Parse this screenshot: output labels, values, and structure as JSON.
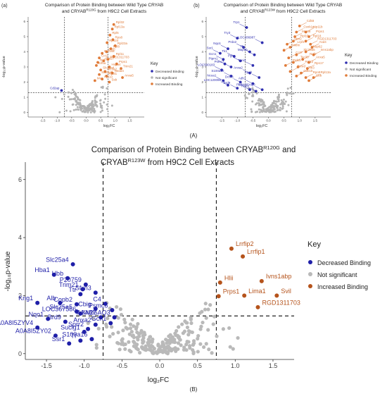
{
  "chart_data": [
    {
      "type": "scatter",
      "panel_label": "(a)",
      "title_line1": "Comparison of Protein Binding between Wild Type CRYAB",
      "title_line2": "and CRYAB",
      "title_sup": "R120G",
      "title_tail": " from H9C2 Cell Extracts",
      "xlabel": "log₂FC",
      "ylabel": "-log₁₀p-value",
      "xlim": [
        -2,
        2
      ],
      "ylim": [
        -0.3,
        6.3
      ],
      "xticks": [
        -1.5,
        -1.0,
        -0.5,
        0.0,
        0.5,
        1.0,
        1.5
      ],
      "yticks": [
        0,
        1,
        2,
        3,
        4,
        5,
        6
      ],
      "vlines": [
        -0.75,
        0.75
      ],
      "hline": 1.3,
      "legend": {
        "title": "Key",
        "position": "right",
        "items": [
          "Decreased Binding",
          "Not significant",
          "Increased Binding"
        ]
      },
      "series": [
        {
          "name": "Decreased Binding",
          "color": "#2f2fb0",
          "points": [
            [
              -0.85,
              1.45,
              "Cd2ap"
            ]
          ]
        },
        {
          "name": "Increased Binding",
          "color": "#e07b39",
          "points": [
            [
              0.95,
              5.8,
              "Rpl32"
            ],
            [
              0.9,
              5.5,
              "Rpl13a"
            ],
            [
              0.82,
              5.1,
              "Rpl6"
            ],
            [
              0.92,
              4.8,
              "Rps8"
            ],
            [
              0.72,
              4.6,
              "Rps24"
            ],
            [
              1.0,
              4.4,
              "Rpl23a"
            ],
            [
              0.85,
              4.2,
              "Rpl8"
            ],
            [
              0.7,
              4.0,
              "Dct5"
            ],
            [
              0.55,
              3.9,
              "Rpl18a"
            ],
            [
              0.95,
              3.7,
              "Rpl11"
            ],
            [
              0.45,
              3.6,
              "Cct2"
            ],
            [
              0.75,
              3.5,
              "RGD1311703"
            ],
            [
              0.6,
              3.4,
              "Rpl27"
            ],
            [
              0.4,
              3.3,
              "Nuf7"
            ],
            [
              1.05,
              3.2,
              "Prps1"
            ],
            [
              0.35,
              3.1,
              "Eif5a"
            ],
            [
              0.8,
              3.0,
              "Hspa4"
            ],
            [
              1.2,
              2.9,
              "Trim21"
            ],
            [
              0.5,
              2.8,
              "Slc25a4"
            ],
            [
              0.65,
              2.7,
              "Slc3a2"
            ],
            [
              0.9,
              2.6,
              "Nedd4"
            ],
            [
              0.45,
              2.5,
              "Slc25a5"
            ],
            [
              0.7,
              2.4,
              "Rpl31"
            ],
            [
              1.25,
              2.3,
              "Anxa5"
            ],
            [
              0.55,
              2.2,
              "Rpl10"
            ],
            [
              0.3,
              2.1,
              "Msn"
            ],
            [
              0.8,
              2.0,
              "Ssb"
            ]
          ]
        },
        {
          "name": "Not significant",
          "color": "#b4b4b4",
          "points": []
        }
      ]
    },
    {
      "type": "scatter",
      "panel_label": "(b)",
      "title_line1": "Comparison of Protein Binding between Wild Type CRYAB",
      "title_line2": "and CRYAB",
      "title_sup": "R123W",
      "title_tail": " from H9C2 Cell Extracts",
      "xlabel": "log₂FC",
      "ylabel": "-log₁₀p-value",
      "xlim": [
        -2,
        2
      ],
      "ylim": [
        -0.3,
        6.3
      ],
      "xticks": [
        -1.5,
        -1.0,
        -0.5,
        0.0,
        0.5,
        1.0,
        1.5
      ],
      "yticks": [
        0,
        1,
        2,
        3,
        4,
        5,
        6
      ],
      "vlines": [
        -0.75,
        0.75
      ],
      "hline": 1.3,
      "legend": {
        "title": "Key",
        "position": "right",
        "items": [
          "Decreased Binding",
          "Not significant",
          "Increased Binding"
        ]
      },
      "series": [
        {
          "name": "Decreased Binding",
          "color": "#2f2fb0",
          "points": [
            [
              -0.7,
              5.6,
              "Trp1"
            ],
            [
              -1.0,
              4.9,
              "Try3"
            ],
            [
              -0.2,
              4.6,
              "LOC286987"
            ],
            [
              -1.3,
              4.2,
              "Nqo1"
            ],
            [
              -0.8,
              4.3,
              "Prdx2"
            ],
            [
              -0.6,
              4.0,
              "Tf"
            ],
            [
              -1.55,
              3.9,
              "Ssr1"
            ],
            [
              -0.45,
              3.8,
              "Map1b"
            ],
            [
              -1.1,
              3.7,
              "Tk1"
            ],
            [
              -1.45,
              3.5,
              "Gcn1"
            ],
            [
              -0.9,
              3.4,
              "Pgk"
            ],
            [
              -1.4,
              3.2,
              "Ptpm1"
            ],
            [
              -0.5,
              3.1,
              "Tnni3"
            ],
            [
              -1.2,
              3.0,
              "Psmc7"
            ],
            [
              -1.5,
              2.8,
              "LOC500183"
            ],
            [
              -0.6,
              2.6,
              "Anxa2"
            ],
            [
              -1.2,
              2.4,
              "S100a10"
            ],
            [
              -0.3,
              2.3,
              "Apoh"
            ],
            [
              -1.45,
              2.1,
              "Ncoa1"
            ],
            [
              -0.9,
              2.0,
              "Dctn3"
            ],
            [
              -0.5,
              1.9,
              "Adh1"
            ],
            [
              -1.3,
              1.8,
              "LOC120098"
            ],
            [
              -1.0,
              1.6,
              "Brd9"
            ],
            [
              -0.6,
              1.5,
              "Plec"
            ],
            [
              -0.4,
              1.4,
              "Hoes"
            ],
            [
              -0.2,
              1.5,
              "A0A8I6AQ3"
            ]
          ]
        },
        {
          "name": "Increased Binding",
          "color": "#e07b39",
          "points": [
            [
              1.0,
              5.7,
              "Cdk8"
            ],
            [
              0.9,
              5.3,
              "Csnk1g"
            ],
            [
              1.2,
              5.3,
              "Atp11b"
            ],
            [
              0.85,
              5.0,
              "Mcm6"
            ],
            [
              1.3,
              5.0,
              "Prps1"
            ],
            [
              0.8,
              4.7,
              "Rpl15"
            ],
            [
              1.2,
              4.7,
              "Rpl18"
            ],
            [
              0.6,
              4.5,
              "Atrn2"
            ],
            [
              1.35,
              4.5,
              "RGD1311703"
            ],
            [
              0.7,
              4.3,
              "Lrpf1"
            ],
            [
              1.4,
              4.3,
              "Asd4"
            ],
            [
              0.5,
              4.1,
              "Tmem"
            ],
            [
              1.2,
              4.0,
              "Nup62"
            ],
            [
              0.9,
              3.8,
              "Slc25a5"
            ],
            [
              1.45,
              3.8,
              "Ivns1abp"
            ],
            [
              0.65,
              3.6,
              "Cct7"
            ],
            [
              1.1,
              3.5,
              "Nuf2"
            ],
            [
              0.8,
              3.3,
              "Tsc30"
            ],
            [
              1.3,
              3.3,
              "Anxa5"
            ],
            [
              0.55,
              3.1,
              "Prdx5"
            ],
            [
              0.95,
              3.0,
              "Rpl12"
            ],
            [
              1.25,
              2.9,
              "Rps17"
            ],
            [
              0.7,
              2.7,
              "Txnrd"
            ],
            [
              1.05,
              2.6,
              "Tln3"
            ],
            [
              0.9,
              2.4,
              "Cdk15"
            ],
            [
              1.2,
              2.3,
              "Rpn9"
            ],
            [
              1.45,
              2.3,
              "Rpl13a"
            ],
            [
              1.3,
              2.1,
              "Cbb"
            ]
          ]
        },
        {
          "name": "Not significant",
          "color": "#b4b4b4",
          "points": []
        }
      ]
    },
    {
      "type": "scatter",
      "panel_label": "(B)",
      "title_line1": "Comparison of Protein Binding between CRYAB",
      "title_sup1": "R120G",
      "title_mid": " and",
      "title_line2": "CRYAB",
      "title_sup2": "R123W",
      "title_tail": " from H9C2 Cell Extracts",
      "xlabel": "log₂FC",
      "ylabel": "-log₁₀p-value",
      "xlim": [
        -1.78,
        1.78
      ],
      "ylim": [
        -0.2,
        6.6
      ],
      "xticks": [
        -1.5,
        -1.0,
        -0.5,
        0.0,
        0.5,
        1.0,
        1.5
      ],
      "xtick_labels": [
        "-1.5",
        "-1.0",
        "-0.5",
        "0.0",
        "0.5",
        "1.0",
        "1.5"
      ],
      "yticks": [
        0,
        2,
        4,
        6
      ],
      "vlines": [
        -0.75,
        0.75
      ],
      "hline": 1.3,
      "legend": {
        "title": "Key",
        "position": "right",
        "items": [
          "Decreased Binding",
          "Not significant",
          "Increased Binding"
        ]
      },
      "series": [
        {
          "name": "Decreased Binding",
          "color": "#1f1fa8",
          "points": [
            [
              -1.15,
              3.08,
              "Slc25a4"
            ],
            [
              -1.4,
              2.72,
              "Hba1"
            ],
            [
              -1.22,
              2.6,
              "Hbb"
            ],
            [
              -0.98,
              2.38,
              "P20759"
            ],
            [
              -1.02,
              2.22,
              "Trim21"
            ],
            [
              -1.05,
              2.05,
              "Ttr"
            ],
            [
              -0.85,
              2.1,
              "Sfxn3"
            ],
            [
              -1.62,
              1.75,
              "Kng1"
            ],
            [
              -1.32,
              1.75,
              "Alb"
            ],
            [
              -1.1,
              1.7,
              "Copb2"
            ],
            [
              -0.72,
              1.72,
              "C4"
            ],
            [
              -0.85,
              1.55,
              "Cbig"
            ],
            [
              -1.1,
              1.45,
              "Slc25a5"
            ],
            [
              -1.05,
              1.38,
              "LOC367586"
            ],
            [
              -0.63,
              1.5,
              "Psmc6"
            ],
            [
              -1.48,
              1.2,
              "Nqo1"
            ],
            [
              -0.78,
              1.25,
              "Kri27"
            ],
            [
              -0.6,
              1.25,
              "A0A8I6AQ3"
            ],
            [
              -1.25,
              1.1,
              "Brd9"
            ],
            [
              -0.85,
              1.0,
              "Anxa2"
            ],
            [
              -0.65,
              1.05,
              "Gcn1"
            ],
            [
              -1.62,
              0.9,
              "A0A8I5ZYV4"
            ],
            [
              -0.95,
              0.85,
              "Sprr2"
            ],
            [
              -1.0,
              0.75,
              "Suclg1"
            ],
            [
              -1.38,
              0.62,
              "A0A8I5ZY02"
            ],
            [
              -0.9,
              0.5,
              "S100a16"
            ],
            [
              -1.05,
              0.45,
              "Tf"
            ],
            [
              -1.2,
              0.35,
              "Ssr1"
            ]
          ]
        },
        {
          "name": "Increased Binding",
          "color": "#b5531b",
          "points": [
            [
              0.95,
              3.62,
              "Lrrfip2"
            ],
            [
              1.1,
              3.35,
              "Lrrfip1"
            ],
            [
              0.8,
              2.45,
              "Hlii"
            ],
            [
              1.35,
              2.5,
              "Ivns1abp"
            ],
            [
              0.78,
              1.98,
              "Prps1"
            ],
            [
              1.12,
              2.0,
              "Lima1"
            ],
            [
              1.55,
              2.0,
              "Svil"
            ],
            [
              1.3,
              1.6,
              "RGD1311703"
            ]
          ]
        },
        {
          "name": "Not significant",
          "color": "#b9b9b9",
          "points": []
        }
      ]
    }
  ],
  "figure_labels": {
    "A": "(A)",
    "B": "(B)"
  }
}
